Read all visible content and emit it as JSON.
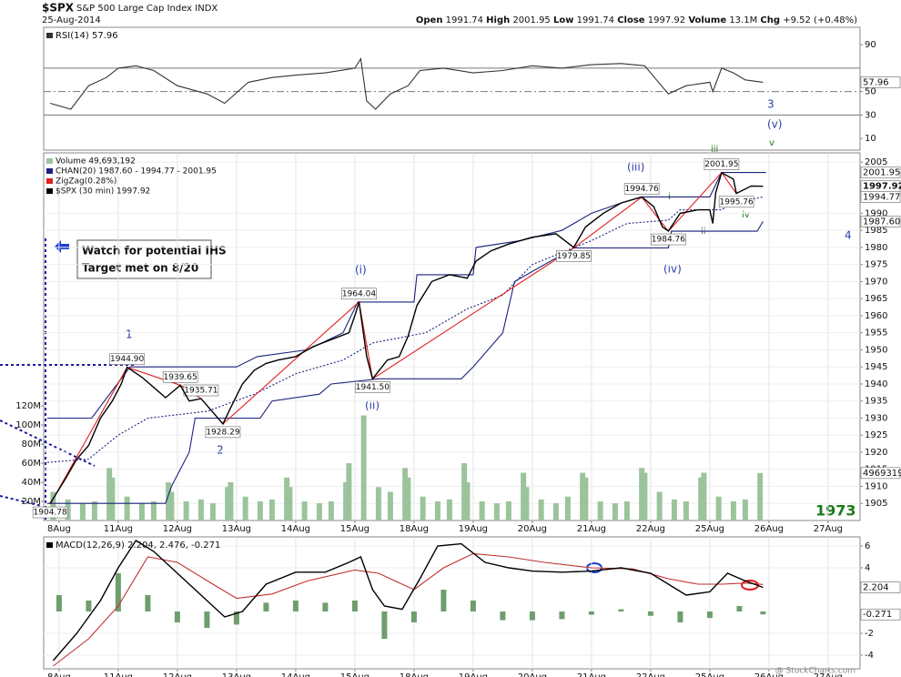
{
  "header": {
    "symbol": "$SPX",
    "name": "S&P 500 Large Cap Index",
    "exchange": "INDX",
    "date": "25-Aug-2014",
    "watermark": "@ StockCharts.com",
    "quote": [
      {
        "label": "Open",
        "value": "1991.74"
      },
      {
        "label": "High",
        "value": "2001.95"
      },
      {
        "label": "Low",
        "value": "1991.74"
      },
      {
        "label": "Close",
        "value": "1997.92"
      },
      {
        "label": "Volume",
        "value": "13.1M"
      },
      {
        "label": "Chg",
        "value": "+9.52 (+0.48%)"
      }
    ]
  },
  "chart_data": [
    {
      "type": "line",
      "xlim": [
        -0.26,
        13.54
      ],
      "ylim": [
        0,
        104.9
      ],
      "yticks": [
        90,
        50,
        30,
        10
      ],
      "levels": [
        70,
        50,
        30
      ],
      "series": [
        {
          "name": "RSI(14) 57.96",
          "color": "#333",
          "last_label": "57.96",
          "x": [
            -0.15,
            0.2,
            0.5,
            0.8,
            1.0,
            1.3,
            1.6,
            2.0,
            2.5,
            2.8,
            3.2,
            3.6,
            4.0,
            4.5,
            5.0,
            5.1,
            5.2,
            5.35,
            5.6,
            5.9,
            6.1,
            6.5,
            7.0,
            7.5,
            8.0,
            8.5,
            9.0,
            9.5,
            9.9,
            10.1,
            10.3,
            10.6,
            11.0,
            11.05,
            11.2,
            11.4,
            11.6,
            11.9
          ],
          "values": [
            40,
            35,
            55,
            62,
            70,
            72,
            68,
            55,
            48,
            40,
            58,
            62,
            64,
            66,
            70,
            78,
            42,
            35,
            48,
            55,
            68,
            70,
            66,
            68,
            72,
            70,
            73,
            74,
            72,
            60,
            48,
            55,
            58,
            50,
            70,
            66,
            60,
            57.96
          ]
        }
      ]
    },
    {
      "type": "line",
      "xlim": [
        -0.26,
        13.54
      ],
      "ylim": [
        1900,
        2007.7
      ],
      "grid": true,
      "yticks": [
        2005,
        1990,
        1985,
        1980,
        1975,
        1970,
        1965,
        1960,
        1955,
        1950,
        1945,
        1940,
        1935,
        1930,
        1925,
        1920,
        1915,
        1910,
        1905
      ],
      "y2lim": [
        0,
        385
      ],
      "y2ticks": [
        {
          "value": 120,
          "label": "120M"
        },
        {
          "value": 100,
          "label": "100M"
        },
        {
          "value": 80,
          "label": "80M"
        },
        {
          "value": 60,
          "label": "60M"
        },
        {
          "value": 40,
          "label": "40M"
        },
        {
          "value": 20,
          "label": "20M"
        }
      ],
      "xticks": [
        {
          "value": 0,
          "label": "8Aug"
        },
        {
          "value": 1,
          "label": "11Aug"
        },
        {
          "value": 2,
          "label": "12Aug"
        },
        {
          "value": 3,
          "label": "13Aug"
        },
        {
          "value": 4,
          "label": "14Aug"
        },
        {
          "value": 5,
          "label": "15Aug"
        },
        {
          "value": 6,
          "label": "18Aug"
        },
        {
          "value": 7,
          "label": "19Aug"
        },
        {
          "value": 8,
          "label": "20Aug"
        },
        {
          "value": 9,
          "label": "21Aug"
        },
        {
          "value": 10,
          "label": "22Aug"
        },
        {
          "value": 11,
          "label": "25Aug"
        },
        {
          "value": 12,
          "label": "26Aug"
        },
        {
          "value": 13,
          "label": "27Aug"
        }
      ],
      "series": [
        {
          "name": "Volume 49,693,192",
          "type": "bar",
          "axis": "y2",
          "color": "#9cc49c",
          "last_label": "49693192",
          "x": [
            -0.1,
            0.15,
            0.4,
            0.6,
            0.85,
            0.9,
            1.15,
            1.4,
            1.6,
            1.85,
            1.9,
            2.15,
            2.4,
            2.6,
            2.85,
            2.9,
            3.15,
            3.4,
            3.6,
            3.85,
            3.9,
            4.15,
            4.4,
            4.6,
            4.85,
            4.9,
            5.15,
            5.4,
            5.6,
            5.85,
            5.9,
            6.15,
            6.4,
            6.6,
            6.85,
            6.9,
            7.15,
            7.4,
            7.6,
            7.85,
            7.9,
            8.15,
            8.4,
            8.6,
            8.85,
            8.9,
            9.15,
            9.4,
            9.6,
            9.85,
            9.9,
            10.15,
            10.4,
            10.6,
            10.85,
            10.9,
            11.15,
            11.4,
            11.6,
            11.85
          ],
          "values": [
            30,
            22,
            18,
            20,
            55,
            45,
            25,
            18,
            20,
            40,
            30,
            20,
            22,
            18,
            35,
            40,
            25,
            20,
            22,
            45,
            35,
            20,
            18,
            20,
            40,
            60,
            110,
            35,
            30,
            55,
            45,
            25,
            20,
            22,
            60,
            40,
            20,
            18,
            20,
            50,
            35,
            22,
            18,
            25,
            50,
            45,
            20,
            18,
            20,
            55,
            50,
            30,
            22,
            20,
            45,
            50,
            25,
            20,
            22,
            49.7
          ]
        },
        {
          "name": "CHAN(20) 1987.60 - 1994.77 - 2001.95",
          "color": "#1a237e",
          "last_label": "2001.95",
          "x": [
            -0.2,
            0.55,
            1.2,
            3.0,
            3.35,
            4.2,
            4.8,
            5.05,
            6.0,
            6.05,
            7.0,
            7.05,
            7.8,
            8.5,
            9.0,
            9.5,
            9.85,
            11.0,
            11.2,
            11.95
          ],
          "values": [
            1930,
            1930,
            1945,
            1945,
            1948,
            1950,
            1955,
            1964,
            1964,
            1972,
            1972,
            1980,
            1982,
            1985,
            1990,
            1993,
            1994.8,
            1994.8,
            2001.95,
            2001.95
          ]
        },
        {
          "color": "#1a237e",
          "dash": true,
          "last_label": "1994.77",
          "x": [
            -0.2,
            0.5,
            1.0,
            1.5,
            2.5,
            3.3,
            4.0,
            4.8,
            5.3,
            6.2,
            6.9,
            7.5,
            8.0,
            9.0,
            9.6,
            10.3,
            10.5,
            11.2,
            11.4,
            11.9
          ],
          "values": [
            1917,
            1918,
            1925,
            1930,
            1932,
            1937,
            1943,
            1947,
            1952,
            1955,
            1962,
            1966,
            1975,
            1982,
            1987,
            1988,
            1991,
            1991,
            1993,
            1994.77
          ]
        },
        {
          "color": "#1a237e",
          "last_label": "1987.60",
          "x": [
            -0.2,
            1.8,
            1.9,
            2.2,
            2.3,
            3.4,
            3.6,
            4.4,
            4.6,
            5.4,
            6.8,
            7.0,
            7.5,
            7.7,
            8.7,
            10.3,
            10.35,
            11.8,
            11.9
          ],
          "values": [
            1905,
            1905,
            1910,
            1920,
            1930,
            1930,
            1935,
            1937,
            1940,
            1941.5,
            1941.5,
            1945,
            1955,
            1970,
            1979.85,
            1979.85,
            1984.76,
            1984.76,
            1987.6
          ]
        },
        {
          "name": "ZigZag(0.28%)",
          "color": "#e02020",
          "x": [
            -0.15,
            1.15,
            2.05,
            2.4,
            2.77,
            5.07,
            5.3,
            8.7,
            9.85,
            10.3,
            11.2,
            11.45
          ],
          "values": [
            1904.78,
            1944.9,
            1939.65,
            1935.71,
            1928.29,
            1964.04,
            1941.5,
            1979.85,
            1994.76,
            1984.76,
            2001.95,
            1995.76
          ],
          "value_labels": [
            "1904.78",
            "1944.90",
            "1939.65",
            "1935.71",
            "1928.29",
            "1964.04",
            "1941.50",
            "1979.85",
            "1994.76",
            "1984.76",
            "2001.95",
            "1995.76"
          ]
        },
        {
          "name": "$SPX (30 min) 1997.92",
          "color": "#000",
          "last_label": "1997.92",
          "x": [
            -0.15,
            0.1,
            0.3,
            0.5,
            0.7,
            0.9,
            1.05,
            1.15,
            1.4,
            1.6,
            1.8,
            2.05,
            2.2,
            2.4,
            2.77,
            2.9,
            3.1,
            3.3,
            3.5,
            3.7,
            4.0,
            4.3,
            4.6,
            4.9,
            5.0,
            5.07,
            5.2,
            5.3,
            5.55,
            5.75,
            5.9,
            6.05,
            6.3,
            6.6,
            6.9,
            7.05,
            7.3,
            7.6,
            8.0,
            8.4,
            8.7,
            8.9,
            9.2,
            9.5,
            9.85,
            10.05,
            10.2,
            10.3,
            10.5,
            10.8,
            11.0,
            11.05,
            11.1,
            11.2,
            11.4,
            11.45,
            11.7,
            11.9
          ],
          "values": [
            1905,
            1912,
            1918,
            1922,
            1930,
            1935,
            1940,
            1944.9,
            1942,
            1939,
            1936,
            1939.6,
            1935,
            1935.7,
            1928.3,
            1933,
            1940,
            1944,
            1946,
            1947,
            1948,
            1951,
            1953,
            1955,
            1960,
            1964,
            1948,
            1941.5,
            1947,
            1948,
            1954,
            1963,
            1970,
            1972,
            1971,
            1976,
            1979,
            1981,
            1983,
            1984,
            1980,
            1986,
            1990,
            1993,
            1994.8,
            1992,
            1986,
            1984.8,
            1990,
            1991,
            1991,
            1987,
            1996,
            2001.9,
            2000,
            1995.8,
            1998,
            1997.92
          ]
        }
      ],
      "annotations": [
        "1",
        "2",
        "(i)",
        "(ii)",
        "(iii)",
        "(iv)",
        "iii",
        "i",
        "ii",
        "iv",
        "3",
        "(v)",
        "v",
        "4",
        "1973"
      ],
      "note": [
        "Watch for potential IHS",
        "Target met on 8/20"
      ]
    },
    {
      "type": "line",
      "xlim": [
        -0.26,
        13.54
      ],
      "ylim": [
        -5.25,
        6.83
      ],
      "grid": true,
      "yticks": [
        6,
        4,
        -2,
        -4
      ],
      "xticks": [
        {
          "value": 0,
          "label": "8Aug"
        },
        {
          "value": 1,
          "label": "11Aug"
        },
        {
          "value": 2,
          "label": "12Aug"
        },
        {
          "value": 3,
          "label": "13Aug"
        },
        {
          "value": 4,
          "label": "14Aug"
        },
        {
          "value": 5,
          "label": "15Aug"
        },
        {
          "value": 6,
          "label": "18Aug"
        },
        {
          "value": 7,
          "label": "19Aug"
        },
        {
          "value": 8,
          "label": "20Aug"
        },
        {
          "value": 9,
          "label": "21Aug"
        },
        {
          "value": 10,
          "label": "22Aug"
        },
        {
          "value": 11,
          "label": "25Aug"
        },
        {
          "value": 12,
          "label": "26Aug"
        },
        {
          "value": 13,
          "label": "27Aug"
        }
      ],
      "series": [
        {
          "type": "bar",
          "color": "#6e9e6e",
          "last_label": "-0.271",
          "x": [
            0,
            0.5,
            1,
            1.5,
            2,
            2.5,
            3,
            3.5,
            4,
            4.5,
            5,
            5.5,
            6,
            6.5,
            7,
            7.5,
            8,
            8.5,
            9,
            9.5,
            10,
            10.5,
            11,
            11.5,
            11.9
          ],
          "values": [
            1.5,
            1,
            3.5,
            1.5,
            -1,
            -1.5,
            -1.2,
            0.8,
            1,
            0.8,
            1,
            -2.5,
            -1,
            2,
            1,
            -0.8,
            -0.8,
            -0.7,
            -0.3,
            0.2,
            -0.4,
            -1,
            -0.6,
            0.5,
            -0.271
          ]
        },
        {
          "color": "#c03030",
          "x": [
            -0.1,
            0.5,
            1.0,
            1.5,
            2.0,
            2.6,
            3.0,
            3.6,
            4.2,
            5.0,
            5.4,
            6.0,
            6.5,
            7.0,
            7.6,
            8.2,
            9.0,
            9.7,
            10.3,
            10.8,
            11.2,
            11.6,
            11.9
          ],
          "values": [
            -5,
            -2.5,
            0.5,
            5,
            4.5,
            2.5,
            1.2,
            1.6,
            2.8,
            3.8,
            3.5,
            2,
            4,
            5.3,
            5,
            4.5,
            4,
            3.9,
            3,
            2.5,
            2.5,
            2.6,
            2.476
          ]
        },
        {
          "name": "MACD(12,26,9) 2.204, 2.476, -0.271",
          "color": "#000",
          "last_label": "2.204",
          "x": [
            -0.1,
            0.3,
            0.7,
            1.0,
            1.3,
            1.6,
            2.0,
            2.5,
            2.8,
            3.1,
            3.5,
            4.0,
            4.5,
            4.9,
            5.1,
            5.3,
            5.5,
            5.8,
            6.1,
            6.4,
            6.8,
            7.2,
            7.6,
            8.0,
            8.5,
            9.0,
            9.5,
            10.0,
            10.3,
            10.6,
            11.0,
            11.3,
            11.6,
            11.9
          ],
          "values": [
            -4.5,
            -2,
            1,
            4,
            6.5,
            5.5,
            3.5,
            1,
            -0.5,
            0,
            2.5,
            3.6,
            3.6,
            4.5,
            5,
            2,
            0.5,
            0.2,
            3,
            6,
            6.2,
            4.5,
            4,
            3.7,
            3.6,
            3.7,
            4,
            3.5,
            2.5,
            1.5,
            1.8,
            3.5,
            2.8,
            2.204
          ]
        }
      ]
    }
  ]
}
